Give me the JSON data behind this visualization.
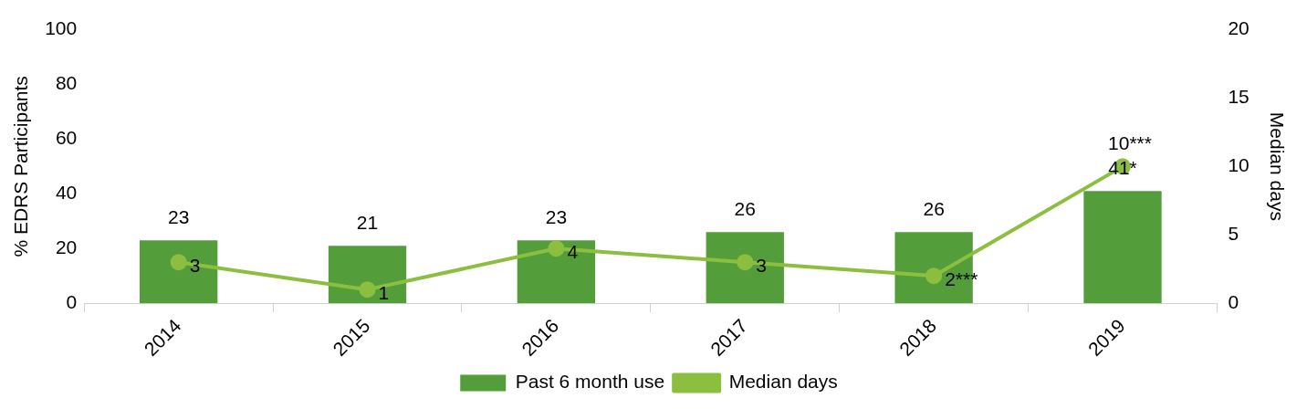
{
  "chart_data": {
    "type": "bar",
    "categories": [
      "2014",
      "2015",
      "2016",
      "2017",
      "2018",
      "2019"
    ],
    "ylabel": "% EDRS Participants",
    "y2label": "Median days",
    "ylim": [
      0,
      100
    ],
    "yticks": [
      0,
      20,
      40,
      60,
      80,
      100
    ],
    "y2lim": [
      0,
      20
    ],
    "y2ticks": [
      0,
      5,
      10,
      15,
      20
    ],
    "series": [
      {
        "name": "Past 6 month use",
        "color": "#539e3a",
        "values": [
          23,
          21,
          23,
          26,
          26,
          41
        ],
        "value_labels": [
          "23",
          "21",
          "23",
          "26",
          "26",
          "41*"
        ]
      },
      {
        "name": "Median days",
        "type": "line",
        "axis": "y2",
        "color": "#8cbf3f",
        "marker": "circle",
        "values": [
          3,
          1,
          4,
          3,
          2,
          10
        ],
        "value_labels": [
          "3",
          "1",
          "4",
          "3",
          "2***",
          "10***"
        ]
      }
    ],
    "grid": false,
    "legend": "bottom"
  }
}
